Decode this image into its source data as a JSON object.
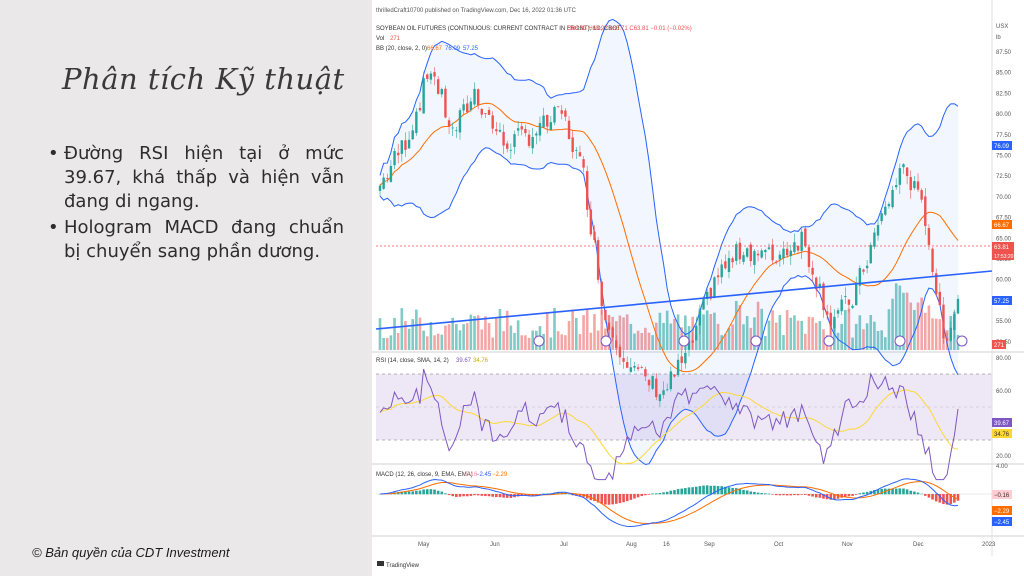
{
  "slide": {
    "title": "Phân tích Kỹ thuật",
    "bullets": [
      "Đường RSI hiện tại ở mức 39.67, khá thấp và hiện vẫn đang di ngang.",
      "Hologram MACD đang chuẩn bị chuyển sang phần dương."
    ],
    "copyright": "© Bản quyền của CDT Investment"
  },
  "chart": {
    "publisher": "thrilledCraft10700 published on TradingView.com, Dec 16, 2022 01:36 UTC",
    "symbol_line": "SOYBEAN OIL FUTURES (CONTINUOUS: CURRENT CONTRACT IN FRONT), 1D, CBOT",
    "ohlc": "O63.93 H63.97 L63.71 C63.81 −0.01 (−0.02%)",
    "vol_label": "Vol",
    "vol_value": "271",
    "bb_label": "BB (20, close, 2, 0)",
    "bb_values": [
      "66.67",
      "76.09",
      "57.25"
    ],
    "currency": "USX",
    "unit": "lb",
    "price_ticks": [
      "87.50",
      "85.00",
      "82.50",
      "80.00",
      "77.50",
      "75.00",
      "72.50",
      "70.00",
      "67.50",
      "65.00",
      "62.50",
      "60.00",
      "57.50",
      "55.00",
      "52.50"
    ],
    "price_badges": {
      "bb_upper": "76.09",
      "bb_basis": "66.67",
      "last": "63.81",
      "countdown": "17:53:20",
      "bb_lower": "57.25",
      "vol": "271"
    },
    "rsi_label": "RSI (14, close, SMA, 14, 2)",
    "rsi_values": [
      "39.67",
      "34.76"
    ],
    "rsi_ticks": [
      "80.00",
      "60.00",
      "20.00"
    ],
    "macd_label": "MACD (12, 26, close, 9, EMA, EMA)",
    "macd_values": [
      "−0.16",
      "−2.45",
      "−2.29"
    ],
    "macd_ticks": [
      "4.00"
    ],
    "macd_badges": [
      "−0.16",
      "−2.29",
      "−2.45"
    ],
    "months": [
      "May",
      "Jun",
      "Jul",
      "Aug",
      "16",
      "Sep",
      "Oct",
      "Nov",
      "Dec",
      "2023"
    ],
    "footer": "TradingView",
    "colors": {
      "up": "#26a69a",
      "down": "#ef5350",
      "bb": "#2962ff",
      "basis": "#ff6d00",
      "rsi": "#7e57c2",
      "rsi_ma": "#fdd835",
      "macd": "#2962ff",
      "signal": "#ff6d00",
      "trend": "#2962ff"
    }
  }
}
